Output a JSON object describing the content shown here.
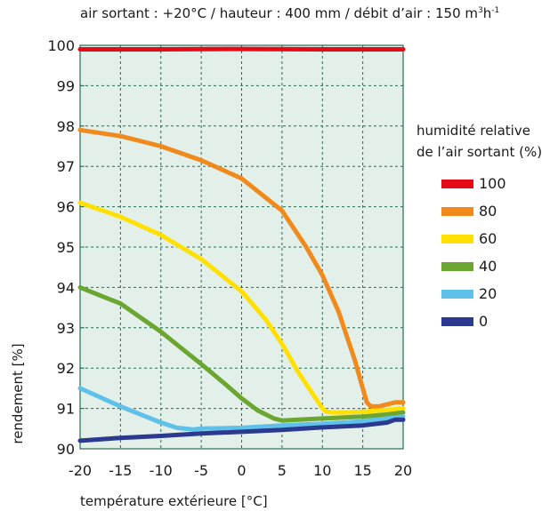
{
  "chart_data": {
    "type": "line",
    "title_main": "air sortant : +20°C / hauteur : 400 mm / débit d’air : 150 m",
    "title_sup1": "3",
    "title_main2": "h",
    "title_sup2": "-1",
    "xlabel": "température extérieure [°C]",
    "ylabel": "rendement [%]",
    "legend_title_line1": "humidité relative",
    "legend_title_line2": "de l’air sortant (%)",
    "xlim": [
      -20,
      20
    ],
    "ylim": [
      90,
      100
    ],
    "xticks": [
      "-20",
      "-15",
      "-10",
      "-5",
      "0",
      "5",
      "10",
      "15",
      "20"
    ],
    "yticks": [
      "90",
      "91",
      "92",
      "93",
      "94",
      "95",
      "96",
      "97",
      "98",
      "99",
      "100"
    ],
    "grid": true,
    "legend_position": "right",
    "background_color": "#e3f0ea",
    "series": [
      {
        "name": "100",
        "color": "#e30b17",
        "x": [
          -20,
          -10,
          0,
          10,
          20
        ],
        "y": [
          99.9,
          99.9,
          99.91,
          99.9,
          99.9
        ]
      },
      {
        "name": "80",
        "color": "#f08a1c",
        "x": [
          -20,
          -15,
          -10,
          -5,
          0,
          5,
          8,
          10,
          12,
          14,
          15,
          15.5,
          16,
          17,
          18,
          19,
          20
        ],
        "y": [
          97.9,
          97.75,
          97.5,
          97.15,
          96.7,
          95.9,
          95.0,
          94.3,
          93.4,
          92.2,
          91.5,
          91.15,
          91.05,
          91.05,
          91.1,
          91.15,
          91.15
        ]
      },
      {
        "name": "60",
        "color": "#ffe000",
        "x": [
          -20,
          -15,
          -10,
          -5,
          0,
          3,
          5,
          7,
          9,
          10,
          10.5,
          11,
          13,
          15,
          17,
          19,
          20
        ],
        "y": [
          96.1,
          95.75,
          95.3,
          94.7,
          93.9,
          93.2,
          92.6,
          91.9,
          91.3,
          91.0,
          90.92,
          90.9,
          90.9,
          90.92,
          90.95,
          90.98,
          91.0
        ]
      },
      {
        "name": "40",
        "color": "#6aa630",
        "x": [
          -20,
          -15,
          -10,
          -5,
          -2,
          0,
          2,
          4,
          5,
          7,
          10,
          15,
          18,
          20
        ],
        "y": [
          94.0,
          93.6,
          92.9,
          92.1,
          91.6,
          91.25,
          90.95,
          90.75,
          90.7,
          90.72,
          90.75,
          90.8,
          90.85,
          90.9
        ]
      },
      {
        "name": "20",
        "color": "#5fc0ea",
        "x": [
          -20,
          -15,
          -10,
          -8,
          -6,
          -5,
          0,
          5,
          10,
          15,
          18,
          20
        ],
        "y": [
          91.5,
          91.05,
          90.65,
          90.52,
          90.48,
          90.5,
          90.52,
          90.58,
          90.62,
          90.68,
          90.75,
          90.8
        ]
      },
      {
        "name": "0",
        "color": "#2b3a8f",
        "x": [
          -20,
          -15,
          -10,
          -5,
          0,
          5,
          10,
          15,
          18,
          19,
          20
        ],
        "y": [
          90.2,
          90.27,
          90.32,
          90.38,
          90.42,
          90.47,
          90.53,
          90.58,
          90.65,
          90.72,
          90.72
        ]
      }
    ]
  }
}
